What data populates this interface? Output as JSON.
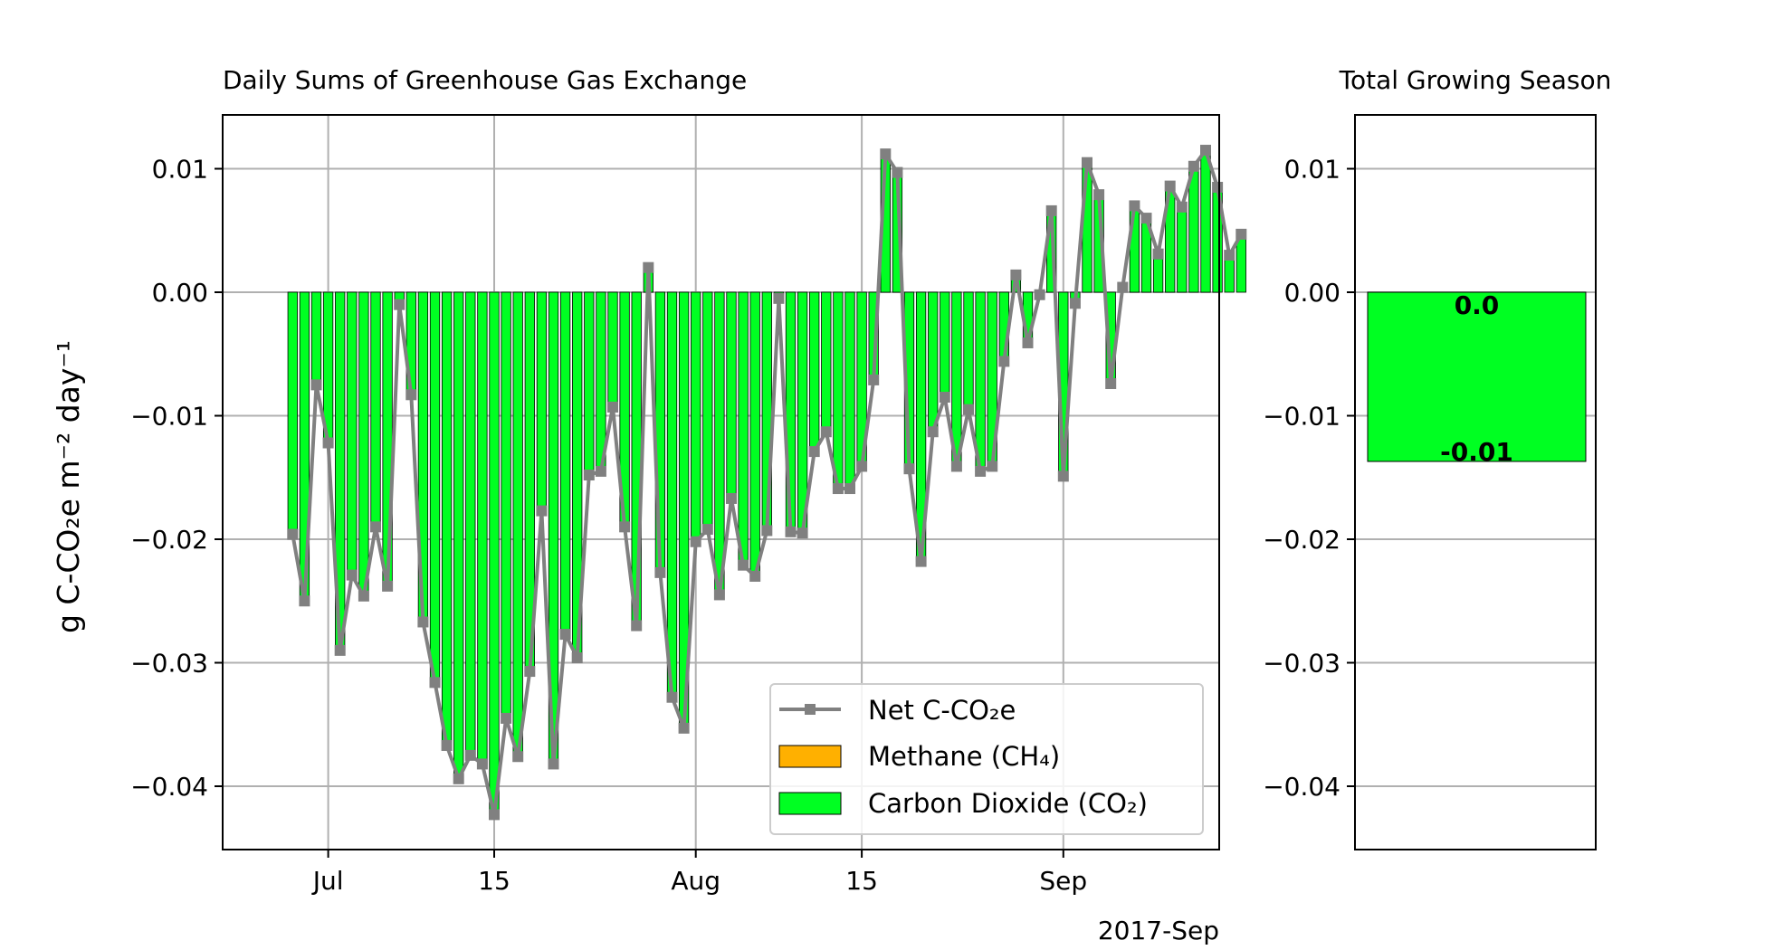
{
  "chart_data": [
    {
      "type": "bar",
      "title": "Daily Sums of Greenhouse Gas Exchange",
      "ylabel": "g C-CO₂e m⁻² day⁻¹",
      "xlabel": "",
      "date_start": "2017-06-28",
      "ylim": [
        -0.045,
        0.0143
      ],
      "yticks": [
        0.01,
        0.0,
        -0.01,
        -0.02,
        -0.03,
        -0.04
      ],
      "ytick_labels": [
        "0.01",
        "0.00",
        "−0.01",
        "−0.02",
        "−0.03",
        "−0.04"
      ],
      "xticks": [
        {
          "date": "2017-07-01",
          "label": "Jul"
        },
        {
          "date": "2017-07-15",
          "label": "15"
        },
        {
          "date": "2017-08-01",
          "label": "Aug"
        },
        {
          "date": "2017-08-15",
          "label": "15"
        },
        {
          "date": "2017-09-01",
          "label": "Sep"
        }
      ],
      "x_offset_label": "2017-Sep",
      "grid": true,
      "legend": {
        "placement": "lower right",
        "entries": [
          {
            "label": "Net C-CO₂e",
            "kind": "line",
            "color": "#808080"
          },
          {
            "label": "Methane (CH₄)",
            "kind": "patch",
            "color": "#ffb000"
          },
          {
            "label": "Carbon Dioxide (CO₂)",
            "kind": "patch",
            "color": "#00ff22"
          }
        ]
      },
      "series": [
        {
          "name": "Net C-CO₂e",
          "values": [
            -0.0196,
            -0.025,
            -0.0075,
            -0.0122,
            -0.029,
            -0.0229,
            -0.0246,
            -0.019,
            -0.0238,
            -0.001,
            -0.0083,
            -0.0267,
            -0.0316,
            -0.0367,
            -0.0394,
            -0.0375,
            -0.0382,
            -0.0423,
            -0.0345,
            -0.0376,
            -0.0307,
            -0.0177,
            -0.0382,
            -0.0277,
            -0.0296,
            -0.0148,
            -0.0145,
            -0.0093,
            -0.019,
            -0.027,
            0.002,
            -0.0227,
            -0.0328,
            -0.0353,
            -0.0202,
            -0.0192,
            -0.0245,
            -0.0167,
            -0.0221,
            -0.023,
            -0.0193,
            -0.0005,
            -0.0194,
            -0.0195,
            -0.0129,
            -0.0113,
            -0.0159,
            -0.0159,
            -0.0141,
            -0.0071,
            0.0112,
            0.0097,
            -0.0143,
            -0.0218,
            -0.0113,
            -0.0085,
            -0.0141,
            -0.0095,
            -0.0145,
            -0.0141,
            -0.0056,
            0.0014,
            -0.0041,
            -0.0002,
            0.0066,
            -0.0149,
            -0.0009,
            0.0105,
            0.0079,
            -0.0074,
            0.0004,
            0.007,
            0.006,
            0.0031,
            0.0086,
            0.0069,
            0.0102,
            0.0115,
            0.0085,
            0.003,
            0.0047
          ]
        },
        {
          "name": "Methane (CH₄)",
          "values": [
            0,
            0,
            0,
            0,
            0,
            0,
            0,
            0,
            0,
            0,
            0,
            0,
            0,
            0,
            0,
            0,
            0,
            0,
            0,
            0,
            0,
            0,
            0,
            0,
            0,
            0,
            0,
            0,
            0,
            0,
            0,
            0,
            0,
            0,
            0,
            0,
            0,
            0,
            0,
            0,
            0,
            0,
            0,
            0,
            0,
            0,
            0,
            0,
            0,
            0,
            0,
            0,
            0,
            0,
            0,
            0,
            0,
            0,
            0,
            0,
            0,
            0,
            0,
            0,
            0,
            0,
            0,
            0,
            0,
            0,
            0,
            0,
            0,
            0,
            0,
            0,
            0,
            0,
            0,
            0,
            0
          ]
        },
        {
          "name": "Carbon Dioxide (CO₂)",
          "values": [
            -0.0196,
            -0.025,
            -0.0075,
            -0.0122,
            -0.029,
            -0.0229,
            -0.0246,
            -0.019,
            -0.0238,
            -0.001,
            -0.0083,
            -0.0267,
            -0.0316,
            -0.0367,
            -0.0394,
            -0.0375,
            -0.0382,
            -0.0423,
            -0.0345,
            -0.0376,
            -0.0307,
            -0.0177,
            -0.0382,
            -0.0277,
            -0.0296,
            -0.0148,
            -0.0145,
            -0.0093,
            -0.019,
            -0.027,
            0.002,
            -0.0227,
            -0.0328,
            -0.0353,
            -0.0202,
            -0.0192,
            -0.0245,
            -0.0167,
            -0.0221,
            -0.023,
            -0.0193,
            -0.0005,
            -0.0194,
            -0.0195,
            -0.0129,
            -0.0113,
            -0.0159,
            -0.0159,
            -0.0141,
            -0.0071,
            0.0112,
            0.0097,
            -0.0143,
            -0.0218,
            -0.0113,
            -0.0085,
            -0.0141,
            -0.0095,
            -0.0145,
            -0.0141,
            -0.0056,
            0.0014,
            -0.0041,
            -0.0002,
            0.0066,
            -0.0149,
            -0.0009,
            0.0105,
            0.0079,
            -0.0074,
            0.0004,
            0.007,
            0.006,
            0.0031,
            0.0086,
            0.0069,
            0.0102,
            0.0115,
            0.0085,
            0.003,
            0.0047
          ]
        }
      ]
    },
    {
      "type": "bar",
      "title": "Total Growing Season",
      "ylim": [
        -0.045,
        0.0143
      ],
      "yticks": [
        0.01,
        0.0,
        -0.01,
        -0.02,
        -0.03,
        -0.04
      ],
      "ytick_labels": [
        "0.01",
        "0.00",
        "−0.01",
        "−0.02",
        "−0.03",
        "−0.04"
      ],
      "grid": true,
      "bars": [
        {
          "name": "Methane (CH₄)",
          "value": 0.0,
          "label": "0.0",
          "color": "#ffb000"
        },
        {
          "name": "Carbon Dioxide (CO₂)",
          "value": -0.0137,
          "label": "-0.01",
          "color": "#00ff22"
        }
      ]
    }
  ]
}
